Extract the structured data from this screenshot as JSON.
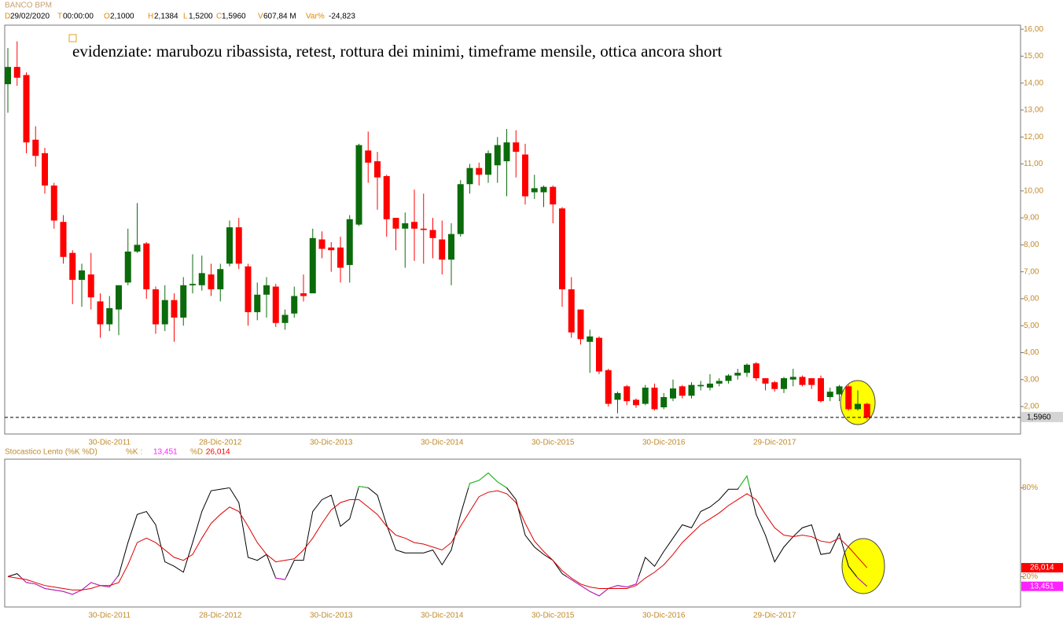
{
  "chart_data": [
    {
      "type": "candlestick",
      "title": "BANCO BPM",
      "header": [
        {
          "key": "D",
          "value": "29/02/2020"
        },
        {
          "key": "T",
          "value": "00:00:00"
        },
        {
          "key": "O",
          "value": "2,1000"
        },
        {
          "key": "H",
          "value": "2,1384"
        },
        {
          "key": "L",
          "value": "1,5200"
        },
        {
          "key": "C",
          "value": "1,5960"
        },
        {
          "key": "V",
          "value": "607,84 M"
        },
        {
          "key": "Var%",
          "value": "-24,823"
        }
      ],
      "annotation": "evidenziate: marubozu ribassista, retest, rottura dei minimi, timeframe mensile, ottica ancora short",
      "categories": [
        null,
        null,
        null,
        null,
        null,
        null,
        null,
        null,
        null,
        null,
        null,
        "30-Dic-2011",
        null,
        null,
        null,
        null,
        null,
        null,
        null,
        null,
        null,
        null,
        null,
        "28-Dic-2012",
        null,
        null,
        null,
        null,
        null,
        null,
        null,
        null,
        null,
        null,
        null,
        "30-Dic-2013",
        null,
        null,
        null,
        null,
        null,
        null,
        null,
        null,
        null,
        null,
        null,
        "30-Dic-2014",
        null,
        null,
        null,
        null,
        null,
        null,
        null,
        null,
        null,
        null,
        null,
        "30-Dic-2015",
        null,
        null,
        null,
        null,
        null,
        null,
        null,
        null,
        null,
        null,
        null,
        "30-Dic-2016",
        null,
        null,
        null,
        null,
        null,
        null,
        null,
        null,
        null,
        null,
        null,
        "29-Dic-2017",
        null,
        null,
        null,
        null,
        null,
        null,
        null,
        null,
        null,
        null
      ],
      "open": [
        13.96,
        14.6,
        14.3,
        11.9,
        11.4,
        10.2,
        8.85,
        7.7,
        6.7,
        6.9,
        5.9,
        5.05,
        5.6,
        6.6,
        7.75,
        8.05,
        6.35,
        5.05,
        5.95,
        5.3,
        6.5,
        6.5,
        6.9,
        6.35,
        7.3,
        8.65,
        7.2,
        5.5,
        6.15,
        6.45,
        5.1,
        5.45,
        6.2,
        6.2,
        8.2,
        7.9,
        7.9,
        7.25,
        8.75,
        11.5,
        11.1,
        10.55,
        9.0,
        8.6,
        8.85,
        8.6,
        8.55,
        8.2,
        7.45,
        8.4,
        10.25,
        10.85,
        10.6,
        10.95,
        11.1,
        11.8,
        11.35,
        9.95,
        9.95,
        10.15,
        9.35,
        6.35,
        5.6,
        4.4,
        4.55,
        3.35,
        2.25,
        2.75,
        2.25,
        2.1,
        2.7,
        1.97,
        2.3,
        2.75,
        2.4,
        2.75,
        2.7,
        2.85,
        2.95,
        3.15,
        3.25,
        3.6,
        3.05,
        2.9,
        2.65,
        3.0,
        3.1,
        3.05,
        3.05,
        2.35,
        2.45,
        2.75,
        1.9,
        2.1
      ],
      "high": [
        15.3,
        15.55,
        14.4,
        12.4,
        11.6,
        10.3,
        9.1,
        7.8,
        7.3,
        7.7,
        6.2,
        6.1,
        6.5,
        8.6,
        9.55,
        8.1,
        6.45,
        6.5,
        6.2,
        6.8,
        7.65,
        7.6,
        7.3,
        7.3,
        8.9,
        9.0,
        7.3,
        6.6,
        6.8,
        6.55,
        5.6,
        6.45,
        6.9,
        8.6,
        8.5,
        8.1,
        8.3,
        9.1,
        11.75,
        12.2,
        11.45,
        10.6,
        9.0,
        9.2,
        10.05,
        9.9,
        9.0,
        8.9,
        8.8,
        10.4,
        11.0,
        11.05,
        11.5,
        12.0,
        12.3,
        12.25,
        11.75,
        10.6,
        10.2,
        10.2,
        9.4,
        6.8,
        5.6,
        4.85,
        4.6,
        3.4,
        2.55,
        2.8,
        2.3,
        2.8,
        2.85,
        2.5,
        3.0,
        2.8,
        2.9,
        2.95,
        3.2,
        3.05,
        3.2,
        3.4,
        3.6,
        3.65,
        3.05,
        2.95,
        3.1,
        3.4,
        3.15,
        3.05,
        3.15,
        2.7,
        2.8,
        2.8,
        2.6,
        2.1384
      ],
      "low": [
        12.9,
        13.9,
        11.4,
        10.9,
        9.9,
        8.6,
        7.3,
        5.8,
        5.7,
        5.6,
        4.55,
        4.8,
        4.65,
        6.5,
        7.7,
        6.0,
        4.7,
        4.8,
        4.4,
        5.0,
        6.2,
        6.3,
        6.1,
        5.9,
        7.2,
        7.1,
        5.0,
        5.2,
        5.3,
        4.95,
        4.85,
        5.3,
        5.9,
        6.2,
        7.5,
        7.0,
        6.6,
        6.6,
        8.7,
        10.3,
        9.3,
        8.3,
        7.8,
        7.15,
        7.4,
        7.3,
        7.5,
        6.9,
        6.5,
        8.3,
        9.9,
        10.2,
        10.3,
        10.3,
        9.8,
        10.5,
        9.5,
        9.7,
        9.4,
        8.8,
        5.7,
        4.55,
        4.3,
        3.25,
        3.2,
        2.0,
        1.75,
        2.05,
        1.95,
        2.05,
        1.85,
        1.9,
        2.2,
        2.3,
        2.3,
        2.6,
        2.6,
        2.75,
        2.85,
        3.0,
        3.1,
        2.95,
        2.6,
        2.55,
        2.5,
        2.75,
        2.75,
        2.65,
        2.15,
        2.2,
        2.2,
        1.85,
        1.85,
        1.52
      ],
      "close": [
        14.6,
        14.2,
        11.8,
        11.3,
        10.2,
        8.9,
        7.55,
        6.7,
        7.05,
        6.05,
        5.05,
        5.65,
        6.5,
        7.75,
        8.0,
        6.35,
        5.05,
        5.95,
        5.3,
        6.5,
        6.55,
        6.95,
        6.35,
        7.1,
        8.65,
        7.3,
        5.5,
        6.15,
        6.5,
        5.1,
        5.4,
        6.1,
        6.1,
        8.25,
        7.85,
        7.8,
        7.15,
        8.95,
        11.7,
        11.05,
        10.5,
        8.95,
        8.6,
        8.8,
        8.6,
        8.55,
        8.25,
        7.45,
        8.4,
        10.25,
        10.85,
        10.6,
        11.4,
        11.7,
        11.8,
        11.45,
        9.8,
        10.1,
        10.15,
        9.5,
        6.35,
        4.75,
        4.5,
        4.6,
        3.3,
        2.1,
        2.5,
        2.2,
        2.05,
        2.7,
        1.9,
        2.35,
        2.67,
        2.4,
        2.8,
        2.8,
        2.85,
        2.95,
        3.15,
        3.25,
        3.55,
        3.05,
        2.85,
        2.65,
        3.05,
        3.1,
        2.8,
        2.8,
        2.2,
        2.55,
        2.75,
        1.9,
        2.1,
        1.596
      ],
      "up_color": "#0b6b0b",
      "down_color": "#ff0000",
      "last_price": {
        "value": 1.596,
        "label": "1,5960"
      },
      "ylim": [
        0.98,
        16.15
      ],
      "yticks": [
        {
          "value": 2,
          "label": "2,00"
        },
        {
          "value": 3,
          "label": "3,00"
        },
        {
          "value": 4,
          "label": "4,00"
        },
        {
          "value": 5,
          "label": "5,00"
        },
        {
          "value": 6,
          "label": "6,00"
        },
        {
          "value": 7,
          "label": "7,00"
        },
        {
          "value": 8,
          "label": "8,00"
        },
        {
          "value": 9,
          "label": "9,00"
        },
        {
          "value": 10,
          "label": "10,00"
        },
        {
          "value": 11,
          "label": "11,00"
        },
        {
          "value": 12,
          "label": "12,00"
        },
        {
          "value": 13,
          "label": "13,00"
        },
        {
          "value": 14,
          "label": "14,00"
        },
        {
          "value": 15,
          "label": "15,00"
        },
        {
          "value": 16,
          "label": "16,00"
        }
      ]
    },
    {
      "type": "line",
      "title": "Stocastico Lento (%K %D)",
      "series": [
        {
          "name": "%K :",
          "color": "#000000",
          "overbought_color": "#22cc22",
          "oversold_color": "#cc22cc",
          "last_label_bg": "#ff22ff",
          "last_value_label": "13,451",
          "values": [
            20,
            22,
            16,
            15,
            12,
            11,
            10,
            8,
            11,
            16,
            14,
            13,
            21,
            43,
            62,
            64,
            55,
            30,
            27,
            23,
            43,
            64,
            78,
            79,
            80,
            70,
            33,
            31,
            35,
            19,
            18,
            31,
            31,
            64,
            72,
            75,
            54,
            59,
            81,
            80,
            75,
            55,
            38,
            36,
            36,
            36,
            38,
            28,
            38,
            62,
            83,
            85,
            90,
            84,
            80,
            72,
            48,
            40,
            35,
            31,
            22,
            18,
            14,
            10,
            7,
            12,
            14,
            13,
            15,
            33,
            27,
            37,
            46,
            55,
            53,
            64,
            67,
            72,
            79,
            79,
            88,
            62,
            48,
            30,
            40,
            47,
            53,
            55,
            35,
            36,
            49,
            27,
            19,
            13.451
          ]
        },
        {
          "name": "%D :",
          "color": "#dd0000",
          "last_label_bg": "#ff0000",
          "last_value_label": "26,014",
          "values": [
            20,
            19,
            18,
            16,
            14,
            13,
            12,
            11,
            11,
            12,
            14,
            14,
            16,
            28,
            43,
            46,
            43,
            38,
            33,
            31,
            35,
            46,
            56,
            62,
            67,
            64,
            54,
            43,
            35,
            30,
            31,
            32,
            38,
            46,
            56,
            65,
            70,
            72,
            72,
            67,
            62,
            54,
            48,
            46,
            43,
            42,
            40,
            38,
            43,
            54,
            64,
            74,
            77,
            78,
            76,
            70,
            56,
            44,
            37,
            31,
            24,
            19,
            15,
            13,
            12,
            12,
            12,
            12,
            14,
            19,
            23,
            28,
            35,
            43,
            49,
            55,
            59,
            63,
            68,
            72,
            76,
            72,
            62,
            53,
            48,
            47,
            48,
            47,
            44,
            43,
            46,
            40,
            33,
            26.014
          ]
        }
      ],
      "ylim": [
        -0.5,
        98.8
      ],
      "yticks": [
        {
          "value": 80,
          "label": "80%"
        },
        {
          "value": 20,
          "label": "20%"
        }
      ]
    }
  ]
}
